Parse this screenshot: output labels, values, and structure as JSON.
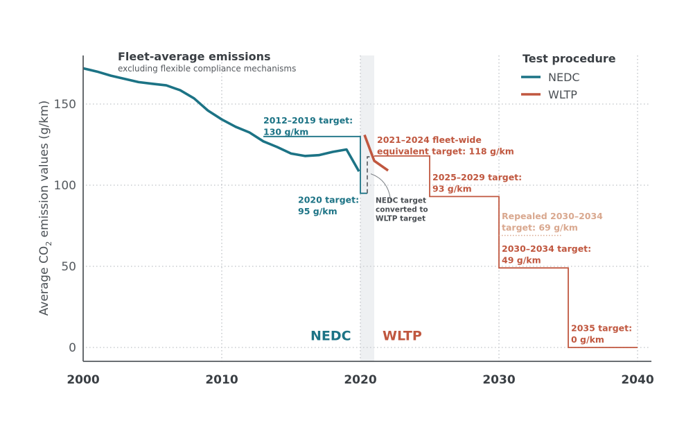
{
  "chart_data": {
    "type": "line",
    "title": "Fleet-average emissions",
    "subtitle": "excluding flexible compliance mechanisms",
    "xlabel": "",
    "ylabel": "Average CO2 emission values (g/km)",
    "ylabel_parts": {
      "before": "Average CO",
      "subscript": "2",
      "after": " emission values (g/km)"
    },
    "xlim": [
      2000,
      2040
    ],
    "ylim": [
      -8,
      176
    ],
    "x_ticks": [
      2000,
      2010,
      2020,
      2030,
      2040
    ],
    "x_tick_labels": [
      "2000",
      "2010",
      "2020",
      "2030",
      "2040"
    ],
    "y_ticks": [
      0,
      50,
      100,
      150
    ],
    "y_tick_labels": [
      "0",
      "50",
      "100",
      "150"
    ],
    "grid": true,
    "legend": {
      "title": "Test procedure",
      "placement": "top-right",
      "entries": [
        {
          "name": "NEDC",
          "color": "#1c7385"
        },
        {
          "name": "WLTP",
          "color": "#c0573f"
        }
      ]
    },
    "transition_band": {
      "from": 2020,
      "to": 2021,
      "color": "#eef0f2"
    },
    "series": [
      {
        "name": "NEDC fleet-average emissions",
        "color": "#1c7385",
        "x": [
          2000,
          2001,
          2002,
          2003,
          2004,
          2005,
          2006,
          2007,
          2008,
          2009,
          2010,
          2011,
          2012,
          2013,
          2014,
          2015,
          2016,
          2017,
          2018,
          2019,
          2019.9
        ],
        "y": [
          172,
          170,
          167.5,
          165.5,
          163.5,
          162.5,
          161.5,
          158.5,
          153.5,
          146,
          140.5,
          136,
          132.5,
          127,
          123.5,
          119.5,
          118,
          118.5,
          120.5,
          122,
          108.5
        ]
      },
      {
        "name": "WLTP fleet-average emissions",
        "color": "#c0573f",
        "x": [
          2020.3,
          2021,
          2022
        ],
        "y": [
          131,
          115,
          109
        ]
      }
    ],
    "targets": [
      {
        "name": "NEDC 2012-2019 target",
        "procedure": "NEDC",
        "color": "#1c7385",
        "steps": [
          [
            2013,
            130
          ],
          [
            2020,
            130
          ],
          [
            2020,
            95
          ],
          [
            2020.5,
            95
          ]
        ],
        "label_lines": [
          "2012–2019 target:",
          "130 g/km"
        ],
        "label_anchor": [
          2013,
          138
        ]
      },
      {
        "name": "NEDC 2020 target",
        "procedure": "NEDC",
        "color": "#1c7385",
        "value": 95,
        "label_lines": [
          "2020 target:",
          "95 g/km"
        ],
        "label_anchor": [
          2015.5,
          89
        ]
      },
      {
        "name": "NEDC target converted to WLTP target",
        "procedure": "conversion",
        "color": "#55595e",
        "dashed": [
          [
            2020.5,
            95
          ],
          [
            2020.5,
            117.5
          ],
          [
            2021,
            117.5
          ]
        ],
        "label_lines": [
          "NEDC target",
          "converted to",
          "WLTP target"
        ],
        "label_anchor": [
          2021.1,
          89
        ]
      },
      {
        "name": "WLTP 2021-2024 fleet-wide equivalent target",
        "procedure": "WLTP",
        "color": "#c0573f",
        "steps": [
          [
            2021,
            118
          ],
          [
            2025,
            118
          ],
          [
            2025,
            93
          ],
          [
            2030,
            93
          ],
          [
            2030,
            49
          ],
          [
            2035,
            49
          ],
          [
            2035,
            0
          ],
          [
            2040,
            0
          ]
        ],
        "label_lines": [
          "2021–2024 fleet-wide",
          "equivalent target: 118 g/km"
        ],
        "label_anchor": [
          2021.2,
          126
        ]
      },
      {
        "name": "WLTP 2025-2029 target",
        "procedure": "WLTP",
        "color": "#c0573f",
        "value": 93,
        "label_lines": [
          "2025–2029 target:",
          "93 g/km"
        ],
        "label_anchor": [
          2025.2,
          103
        ]
      },
      {
        "name": "Repealed 2030-2034 target",
        "procedure": "WLTP",
        "color": "#d9a88f",
        "value": 69,
        "dotted": [
          [
            2030,
            69
          ],
          [
            2034.5,
            69
          ]
        ],
        "label_lines": [
          "Repealed 2030–2034",
          "target: 69 g/km"
        ],
        "label_anchor": [
          2030.2,
          79
        ]
      },
      {
        "name": "WLTP 2030-2034 target",
        "procedure": "WLTP",
        "color": "#c0573f",
        "value": 49,
        "label_lines": [
          "2030–2034 target:",
          "49 g/km"
        ],
        "label_anchor": [
          2030.2,
          59
        ]
      },
      {
        "name": "WLTP 2035 target",
        "procedure": "WLTP",
        "color": "#c0573f",
        "value": 0,
        "label_lines": [
          "2035 target:",
          "0 g/km"
        ],
        "label_anchor": [
          2035.2,
          10
        ]
      }
    ],
    "regime_labels": [
      {
        "text": "NEDC",
        "color": "#1c7385",
        "x": 2016.4,
        "y": 4.5
      },
      {
        "text": "WLTP",
        "color": "#c0573f",
        "x": 2021.6,
        "y": 4.5
      }
    ]
  }
}
